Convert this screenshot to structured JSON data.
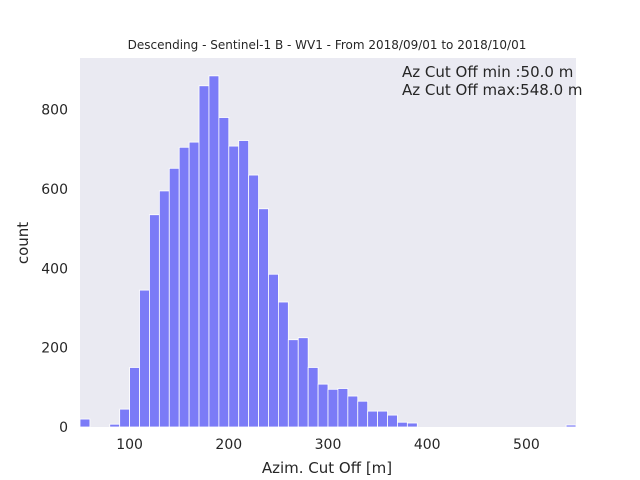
{
  "chart_data": {
    "type": "bar",
    "title": "Descending - Sentinel-1 B - WV1 - From 2018/09/01 to 2018/10/01",
    "xlabel": "Azim. Cut Off [m]",
    "ylabel": "count",
    "xlim": [
      50,
      550
    ],
    "ylim": [
      0,
      930
    ],
    "x_ticks": [
      100,
      200,
      300,
      400,
      500
    ],
    "y_ticks": [
      0,
      200,
      400,
      600,
      800
    ],
    "grid": false,
    "background_color": "#eaeaf2",
    "bar_color": "#7b7bf7",
    "bar_edge_color": "#ffffff",
    "annotations": [
      "Az Cut Off min :50.0 m",
      "Az Cut Off max:548.0 m"
    ],
    "bin_edges": [
      50,
      60,
      70,
      80,
      90,
      100,
      110,
      120,
      130,
      140,
      150,
      160,
      170,
      180,
      190,
      200,
      210,
      220,
      230,
      240,
      250,
      260,
      270,
      280,
      290,
      300,
      310,
      320,
      330,
      340,
      350,
      360,
      370,
      380,
      390,
      400,
      410,
      420,
      430,
      440,
      450,
      460,
      470,
      480,
      490,
      500,
      510,
      520,
      530,
      540,
      550
    ],
    "counts": [
      20,
      0,
      0,
      7,
      45,
      150,
      345,
      535,
      595,
      652,
      705,
      718,
      860,
      885,
      780,
      708,
      722,
      635,
      550,
      385,
      315,
      220,
      225,
      150,
      108,
      95,
      97,
      78,
      65,
      40,
      40,
      30,
      12,
      10,
      0,
      0,
      0,
      0,
      0,
      0,
      0,
      0,
      0,
      0,
      0,
      0,
      0,
      0,
      0,
      5
    ]
  }
}
